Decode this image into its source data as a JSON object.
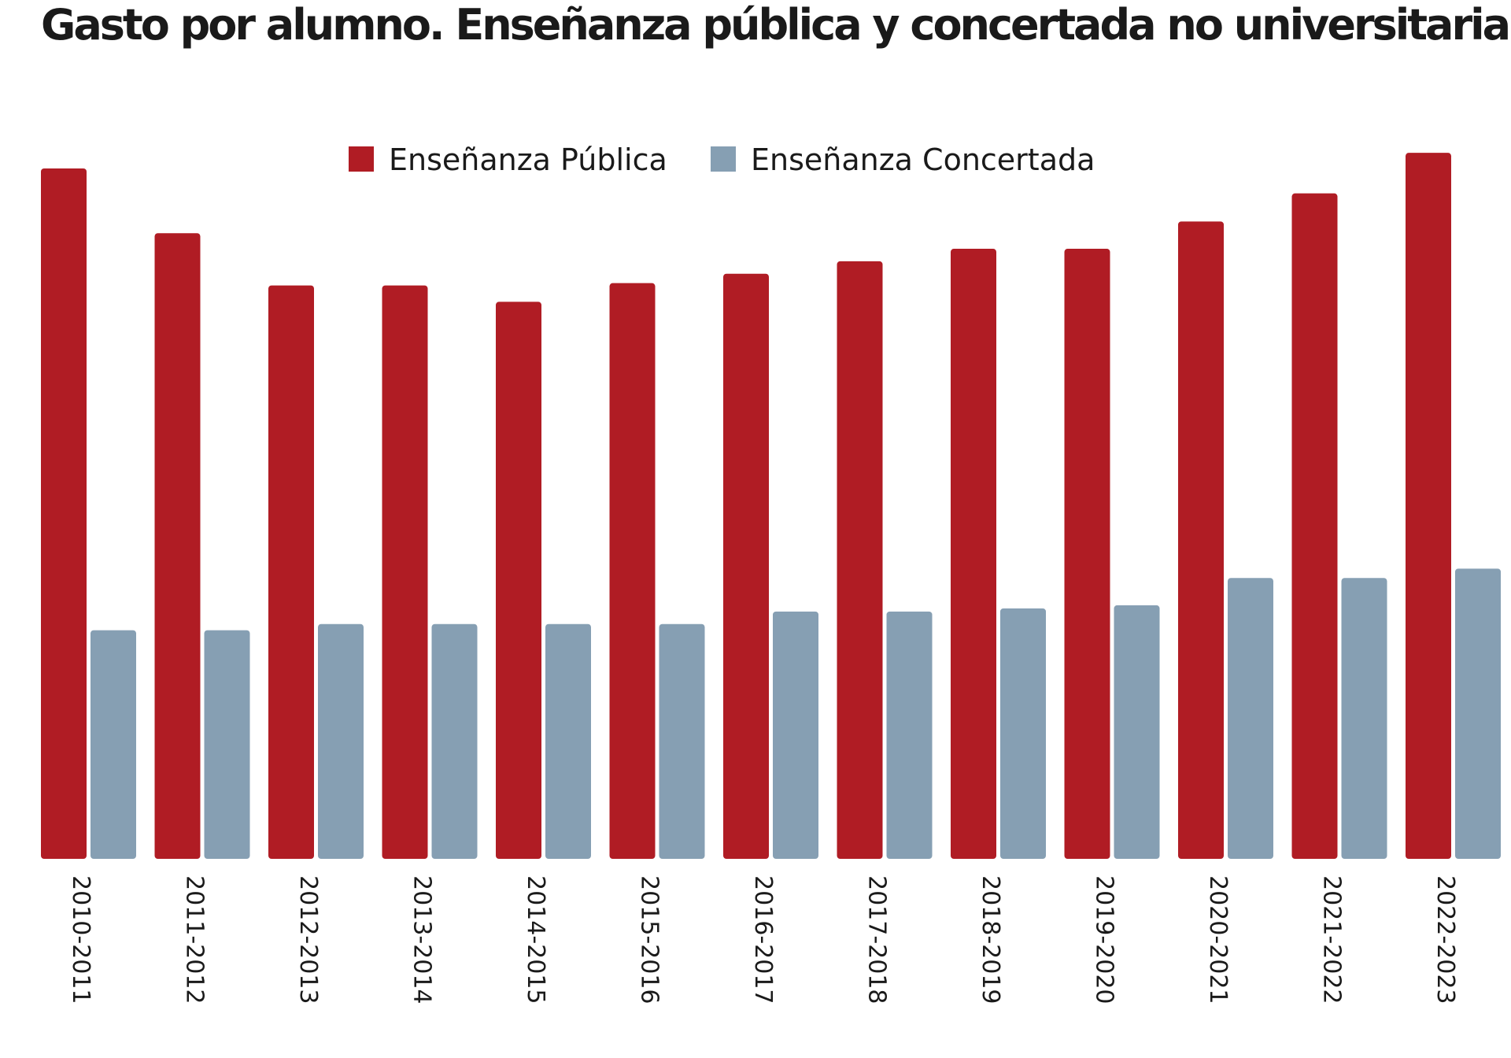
{
  "chart_data": {
    "type": "bar",
    "title": "Gasto por alumno. Enseñanza pública y concertada no universitaria",
    "xlabel": "",
    "ylabel": "",
    "categories": [
      "2010-2011",
      "2011-2012",
      "2012-2013",
      "2013-2014",
      "2014-2015",
      "2015-2016",
      "2016-2017",
      "2017-2018",
      "2018-2019",
      "2019-2020",
      "2020-2021",
      "2021-2022",
      "2022-2023"
    ],
    "series": [
      {
        "name": "Enseñanza Pública",
        "color": "#b01c24",
        "values": [
          8850,
          8020,
          7350,
          7350,
          7140,
          7380,
          7500,
          7660,
          7820,
          7820,
          8170,
          8530,
          9050
        ]
      },
      {
        "name": "Enseñanza Concertada",
        "color": "#869fb3",
        "values": [
          2930,
          2930,
          3010,
          3010,
          3010,
          3010,
          3170,
          3170,
          3210,
          3250,
          3600,
          3600,
          3720
        ]
      }
    ],
    "ylim": [
      0,
      10000
    ],
    "grid": false,
    "legend": "top-center"
  }
}
